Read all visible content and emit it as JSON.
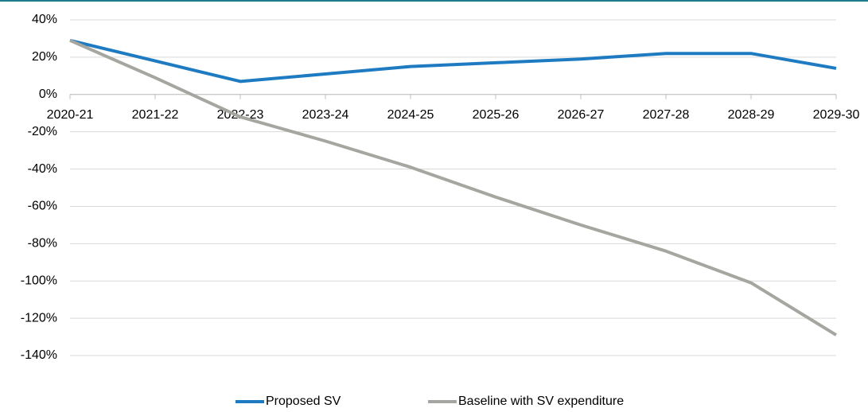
{
  "chart_data": {
    "type": "line",
    "categories": [
      "2020-21",
      "2021-22",
      "2022-23",
      "2023-24",
      "2024-25",
      "2025-26",
      "2026-27",
      "2027-28",
      "2028-29",
      "2029-30"
    ],
    "series": [
      {
        "name": "Proposed SV",
        "color": "#1f7bc1",
        "values": [
          29,
          18,
          7,
          11,
          15,
          17,
          19,
          22,
          22,
          14
        ]
      },
      {
        "name": "Baseline with SV expenditure",
        "color": "#a6a6a1",
        "values": [
          29,
          9,
          -12,
          -25,
          -39,
          -55,
          -70,
          -84,
          -101,
          -129
        ]
      }
    ],
    "ylim": [
      -140,
      40
    ],
    "yticks": [
      {
        "value": 40,
        "label": "40%"
      },
      {
        "value": 20,
        "label": "20%"
      },
      {
        "value": 0,
        "label": "0%"
      },
      {
        "value": -20,
        "label": "-20%"
      },
      {
        "value": -40,
        "label": "-40%"
      },
      {
        "value": -60,
        "label": "-60%"
      },
      {
        "value": -80,
        "label": "-80%"
      },
      {
        "value": -100,
        "label": "-100%"
      },
      {
        "value": -120,
        "label": "-120%"
      },
      {
        "value": -140,
        "label": "-140%"
      }
    ],
    "grid": true,
    "legend": "bottom"
  }
}
